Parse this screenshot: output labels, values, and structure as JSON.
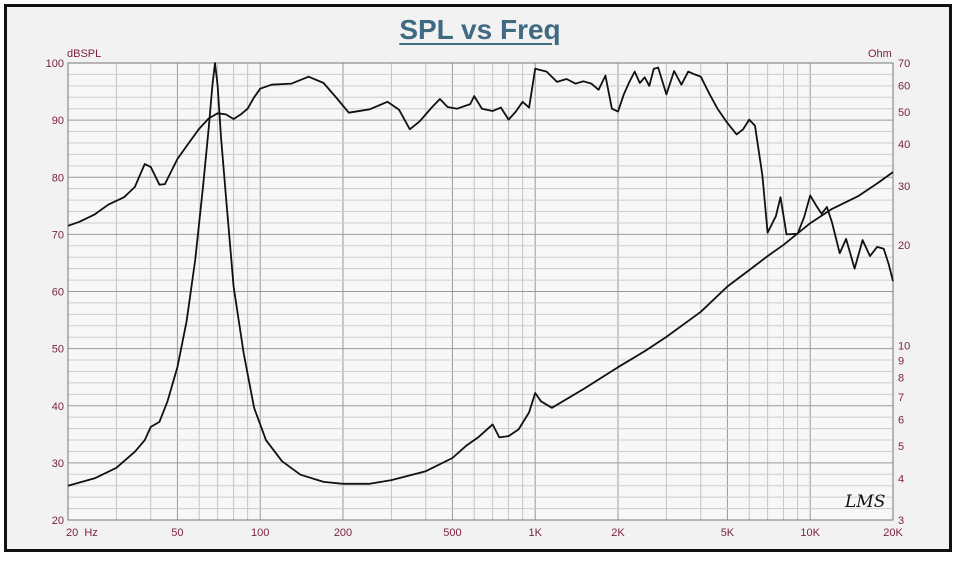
{
  "chart_data": {
    "type": "line",
    "title": "SPL vs Freq",
    "left_axis_unit": "dBSPL",
    "right_axis_unit": "Ohm",
    "watermark": "LMS",
    "x_scale": "log",
    "xlim": [
      20,
      20000
    ],
    "ylim_left": [
      20,
      100
    ],
    "ylim_right": [
      3,
      70
    ],
    "right_scale": "log",
    "grid": true,
    "x_ticks": [
      {
        "value": 20,
        "label": "20  Hz"
      },
      {
        "value": 50,
        "label": "50"
      },
      {
        "value": 100,
        "label": "100"
      },
      {
        "value": 200,
        "label": "200"
      },
      {
        "value": 500,
        "label": "500"
      },
      {
        "value": 1000,
        "label": "1K"
      },
      {
        "value": 2000,
        "label": "2K"
      },
      {
        "value": 5000,
        "label": "5K"
      },
      {
        "value": 10000,
        "label": "10K"
      },
      {
        "value": 20000,
        "label": "20K"
      }
    ],
    "left_ticks": [
      {
        "value": 100,
        "label": "100"
      },
      {
        "value": 90,
        "label": "90"
      },
      {
        "value": 80,
        "label": "80"
      },
      {
        "value": 70,
        "label": "70"
      },
      {
        "value": 60,
        "label": "60"
      },
      {
        "value": 50,
        "label": "50"
      },
      {
        "value": 40,
        "label": "40"
      },
      {
        "value": 30,
        "label": "30"
      },
      {
        "value": 20,
        "label": "20"
      }
    ],
    "right_ticks": [
      {
        "value": 70,
        "label": "70"
      },
      {
        "value": 60,
        "label": "60"
      },
      {
        "value": 50,
        "label": "50"
      },
      {
        "value": 40,
        "label": "40"
      },
      {
        "value": 30,
        "label": "30"
      },
      {
        "value": 20,
        "label": "20"
      },
      {
        "value": 10,
        "label": "10"
      },
      {
        "value": 9,
        "label": "9"
      },
      {
        "value": 8,
        "label": "8"
      },
      {
        "value": 7,
        "label": "7"
      },
      {
        "value": 6,
        "label": "6"
      },
      {
        "value": 5,
        "label": "5"
      },
      {
        "value": 4,
        "label": "4"
      },
      {
        "value": 3,
        "label": "3"
      }
    ],
    "series": [
      {
        "axis": "left",
        "color": "#111111",
        "points": [
          [
            20,
            71.5
          ],
          [
            22,
            72.2
          ],
          [
            25,
            73.5
          ],
          [
            28,
            75.2
          ],
          [
            32,
            76.5
          ],
          [
            35,
            78.3
          ],
          [
            38,
            82.3
          ],
          [
            40,
            81.8
          ],
          [
            43,
            78.7
          ],
          [
            45,
            78.8
          ],
          [
            50,
            83.2
          ],
          [
            55,
            86.0
          ],
          [
            60,
            88.5
          ],
          [
            65,
            90.3
          ],
          [
            70,
            91.2
          ],
          [
            75,
            91.0
          ],
          [
            80,
            90.2
          ],
          [
            85,
            91.0
          ],
          [
            90,
            92.0
          ],
          [
            95,
            94.0
          ],
          [
            100,
            95.5
          ],
          [
            110,
            96.2
          ],
          [
            130,
            96.4
          ],
          [
            150,
            97.6
          ],
          [
            170,
            96.5
          ],
          [
            190,
            93.8
          ],
          [
            210,
            91.3
          ],
          [
            250,
            91.9
          ],
          [
            290,
            93.2
          ],
          [
            320,
            91.8
          ],
          [
            350,
            88.4
          ],
          [
            380,
            89.8
          ],
          [
            420,
            92.2
          ],
          [
            450,
            93.7
          ],
          [
            480,
            92.3
          ],
          [
            520,
            92.0
          ],
          [
            580,
            92.8
          ],
          [
            600,
            94.2
          ],
          [
            640,
            92.0
          ],
          [
            700,
            91.6
          ],
          [
            750,
            92.2
          ],
          [
            800,
            90.1
          ],
          [
            850,
            91.5
          ],
          [
            900,
            93.2
          ],
          [
            950,
            92.2
          ],
          [
            1000,
            99.0
          ],
          [
            1100,
            98.5
          ],
          [
            1200,
            96.7
          ],
          [
            1300,
            97.2
          ],
          [
            1400,
            96.4
          ],
          [
            1500,
            96.8
          ],
          [
            1600,
            96.4
          ],
          [
            1700,
            95.3
          ],
          [
            1800,
            97.8
          ],
          [
            1900,
            92.0
          ],
          [
            2000,
            91.5
          ],
          [
            2100,
            94.5
          ],
          [
            2200,
            96.7
          ],
          [
            2300,
            98.5
          ],
          [
            2400,
            96.5
          ],
          [
            2500,
            97.5
          ],
          [
            2600,
            96.0
          ],
          [
            2700,
            99.0
          ],
          [
            2800,
            99.2
          ],
          [
            3000,
            94.5
          ],
          [
            3200,
            98.6
          ],
          [
            3400,
            96.2
          ],
          [
            3600,
            98.5
          ],
          [
            3800,
            98.0
          ],
          [
            4000,
            97.6
          ],
          [
            4300,
            94.6
          ],
          [
            4600,
            92.0
          ],
          [
            5000,
            89.5
          ],
          [
            5400,
            87.5
          ],
          [
            5700,
            88.4
          ],
          [
            6000,
            90.1
          ],
          [
            6300,
            89.0
          ],
          [
            6700,
            80.3
          ],
          [
            7000,
            70.3
          ],
          [
            7500,
            73.2
          ],
          [
            7800,
            76.5
          ],
          [
            8200,
            70.0
          ],
          [
            9000,
            70.1
          ],
          [
            9500,
            73.0
          ],
          [
            10000,
            76.8
          ],
          [
            10500,
            75.1
          ],
          [
            11000,
            73.6
          ],
          [
            11500,
            74.8
          ],
          [
            12000,
            72.1
          ],
          [
            12800,
            66.7
          ],
          [
            13500,
            69.2
          ],
          [
            14500,
            64.0
          ],
          [
            15500,
            69.0
          ],
          [
            16500,
            66.2
          ],
          [
            17500,
            67.8
          ],
          [
            18500,
            67.5
          ],
          [
            19300,
            64.8
          ],
          [
            20000,
            61.8
          ]
        ]
      },
      {
        "axis": "right",
        "color": "#111111",
        "points": [
          [
            20,
            3.8
          ],
          [
            25,
            4.0
          ],
          [
            30,
            4.3
          ],
          [
            35,
            4.8
          ],
          [
            38,
            5.2
          ],
          [
            40,
            5.7
          ],
          [
            43,
            5.9
          ],
          [
            46,
            6.8
          ],
          [
            50,
            8.6
          ],
          [
            54,
            11.8
          ],
          [
            58,
            18.0
          ],
          [
            62,
            30.0
          ],
          [
            65,
            45.0
          ],
          [
            67,
            60.0
          ],
          [
            68.5,
            70.0
          ],
          [
            70,
            60.0
          ],
          [
            72,
            42.0
          ],
          [
            75,
            28.0
          ],
          [
            80,
            15.0
          ],
          [
            87,
            9.5
          ],
          [
            95,
            6.5
          ],
          [
            105,
            5.2
          ],
          [
            120,
            4.5
          ],
          [
            140,
            4.1
          ],
          [
            170,
            3.9
          ],
          [
            200,
            3.85
          ],
          [
            250,
            3.85
          ],
          [
            300,
            3.95
          ],
          [
            400,
            4.2
          ],
          [
            500,
            4.6
          ],
          [
            560,
            5.0
          ],
          [
            620,
            5.3
          ],
          [
            700,
            5.8
          ],
          [
            740,
            5.3
          ],
          [
            800,
            5.35
          ],
          [
            870,
            5.6
          ],
          [
            950,
            6.3
          ],
          [
            1000,
            7.2
          ],
          [
            1050,
            6.8
          ],
          [
            1150,
            6.5
          ],
          [
            1500,
            7.4
          ],
          [
            2000,
            8.6
          ],
          [
            2500,
            9.6
          ],
          [
            3000,
            10.6
          ],
          [
            4000,
            12.6
          ],
          [
            5000,
            15.0
          ],
          [
            6000,
            16.8
          ],
          [
            7000,
            18.5
          ],
          [
            8000,
            20.0
          ],
          [
            10000,
            23.2
          ],
          [
            12000,
            25.6
          ],
          [
            15000,
            28.0
          ],
          [
            17500,
            30.5
          ],
          [
            20000,
            33.0
          ]
        ]
      }
    ]
  }
}
